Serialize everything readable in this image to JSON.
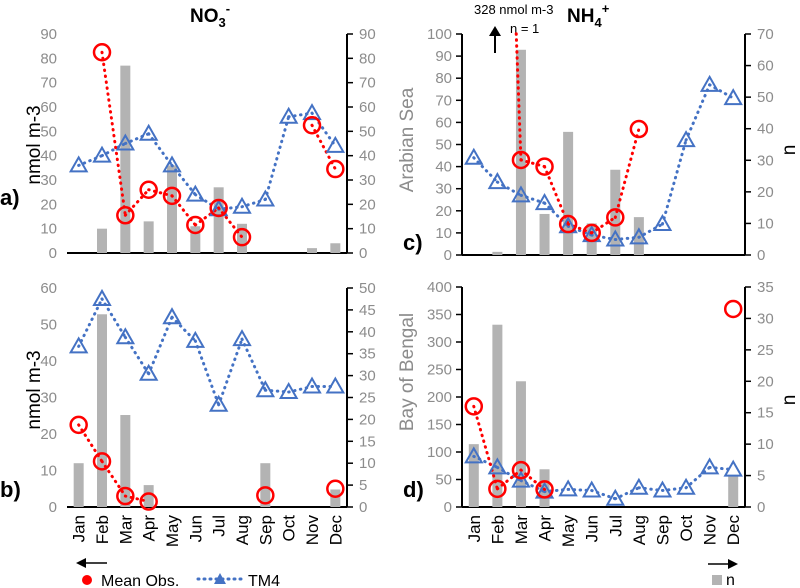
{
  "titles": {
    "left": "NO3",
    "left_charge": "-",
    "left_sub": "3",
    "right": "NH4",
    "right_charge": "+",
    "right_sub": "4"
  },
  "annotation": {
    "value": "328 nmol m-3",
    "n": "n = 1"
  },
  "y_titles": {
    "nmol_a": "nmol m-3",
    "nmol_b": "nmol m-3",
    "arabian": "Arabian Sea",
    "bengal": "Bay of Bengal",
    "n_c": "n",
    "n_d": "n"
  },
  "legend": {
    "obs": "Mean Obs.",
    "tm4": "TM4",
    "n": "n"
  },
  "colors": {
    "obs": "#ff0000",
    "tm4": "#4472c4",
    "bar": "#b3b3b3"
  },
  "chart_data": [
    {
      "type": "bar+line",
      "label": "a)",
      "species": "NO3-",
      "region": "Arabian Sea",
      "categories": [
        "Jan",
        "Feb",
        "Mar",
        "Apr",
        "May",
        "Jun",
        "Jul",
        "Aug",
        "Sep",
        "Oct",
        "Nov",
        "Dec"
      ],
      "ylim": [
        0,
        90
      ],
      "yticks": [
        0,
        10,
        20,
        30,
        40,
        50,
        60,
        70,
        80,
        90
      ],
      "y2lim": [
        0,
        90
      ],
      "y2ticks": [
        0,
        10,
        20,
        30,
        40,
        50,
        60,
        70,
        80,
        90
      ],
      "obs": [
        null,
        82.5,
        15.5,
        26,
        23.5,
        11.5,
        18.5,
        6.5,
        null,
        null,
        52.5,
        34.5
      ],
      "tm4": [
        36,
        40,
        45,
        49,
        36,
        24,
        18,
        19,
        22,
        56,
        57.5,
        44
      ],
      "n": [
        0,
        10,
        77,
        13,
        36,
        11,
        27,
        12,
        0,
        0,
        2,
        4
      ]
    },
    {
      "type": "bar+line",
      "label": "b)",
      "species": "NO3-",
      "region": "Bay of Bengal",
      "categories": [
        "Jan",
        "Feb",
        "Mar",
        "Apr",
        "May",
        "Jun",
        "Jul",
        "Aug",
        "Sep",
        "Oct",
        "Nov",
        "Dec"
      ],
      "ylim": [
        0,
        60
      ],
      "yticks": [
        0,
        10,
        20,
        30,
        40,
        50,
        60
      ],
      "y2lim": [
        0,
        50
      ],
      "y2ticks": [
        0,
        5,
        10,
        15,
        20,
        25,
        30,
        35,
        40,
        45,
        50
      ],
      "obs": [
        22.5,
        12.5,
        3,
        1.5,
        null,
        null,
        null,
        null,
        3.2,
        null,
        null,
        5
      ],
      "tm4": [
        44,
        57,
        46.5,
        36.5,
        52,
        45.5,
        28,
        46,
        32,
        31.5,
        33,
        33
      ],
      "n": [
        10,
        44,
        21,
        5,
        0,
        0,
        0,
        0,
        10,
        0,
        0,
        4
      ]
    },
    {
      "type": "bar+line",
      "label": "c)",
      "species": "NH4+",
      "region": "Arabian Sea",
      "categories": [
        "Jan",
        "Feb",
        "Mar",
        "Apr",
        "May",
        "Jun",
        "Jul",
        "Aug",
        "Sep",
        "Oct",
        "Nov",
        "Dec"
      ],
      "ylim": [
        0,
        100
      ],
      "yticks": [
        0,
        10,
        20,
        30,
        40,
        50,
        60,
        70,
        80,
        90,
        100
      ],
      "y2lim": [
        0,
        70
      ],
      "y2ticks": [
        0,
        10,
        20,
        30,
        40,
        50,
        60,
        70
      ],
      "obs": [
        null,
        328,
        43,
        40,
        14,
        10,
        17,
        57,
        null,
        null,
        null,
        null
      ],
      "tm4": [
        44,
        33,
        27,
        23.5,
        13,
        9,
        7,
        8,
        14,
        52,
        77,
        71
      ],
      "n": [
        0,
        1,
        65,
        13,
        39,
        10,
        27,
        12,
        0,
        0,
        0,
        0
      ]
    },
    {
      "type": "bar+line",
      "label": "d)",
      "species": "NH4+",
      "region": "Bay of Bengal",
      "categories": [
        "Jan",
        "Feb",
        "Mar",
        "Apr",
        "May",
        "Jun",
        "Jul",
        "Aug",
        "Sep",
        "Oct",
        "Nov",
        "Dec"
      ],
      "ylim": [
        0,
        400
      ],
      "yticks": [
        0,
        50,
        100,
        150,
        200,
        250,
        300,
        350,
        400
      ],
      "y2lim": [
        0,
        35
      ],
      "y2ticks": [
        0,
        5,
        10,
        15,
        20,
        25,
        30,
        35
      ],
      "obs": [
        183,
        33,
        67,
        32,
        null,
        null,
        null,
        null,
        null,
        null,
        null,
        360
      ],
      "tm4": [
        92,
        72,
        48,
        28,
        32,
        30,
        15,
        35,
        30,
        35,
        72,
        68
      ],
      "n": [
        10,
        29,
        20,
        6,
        0,
        0,
        0,
        0,
        0,
        0,
        0,
        5
      ]
    }
  ]
}
